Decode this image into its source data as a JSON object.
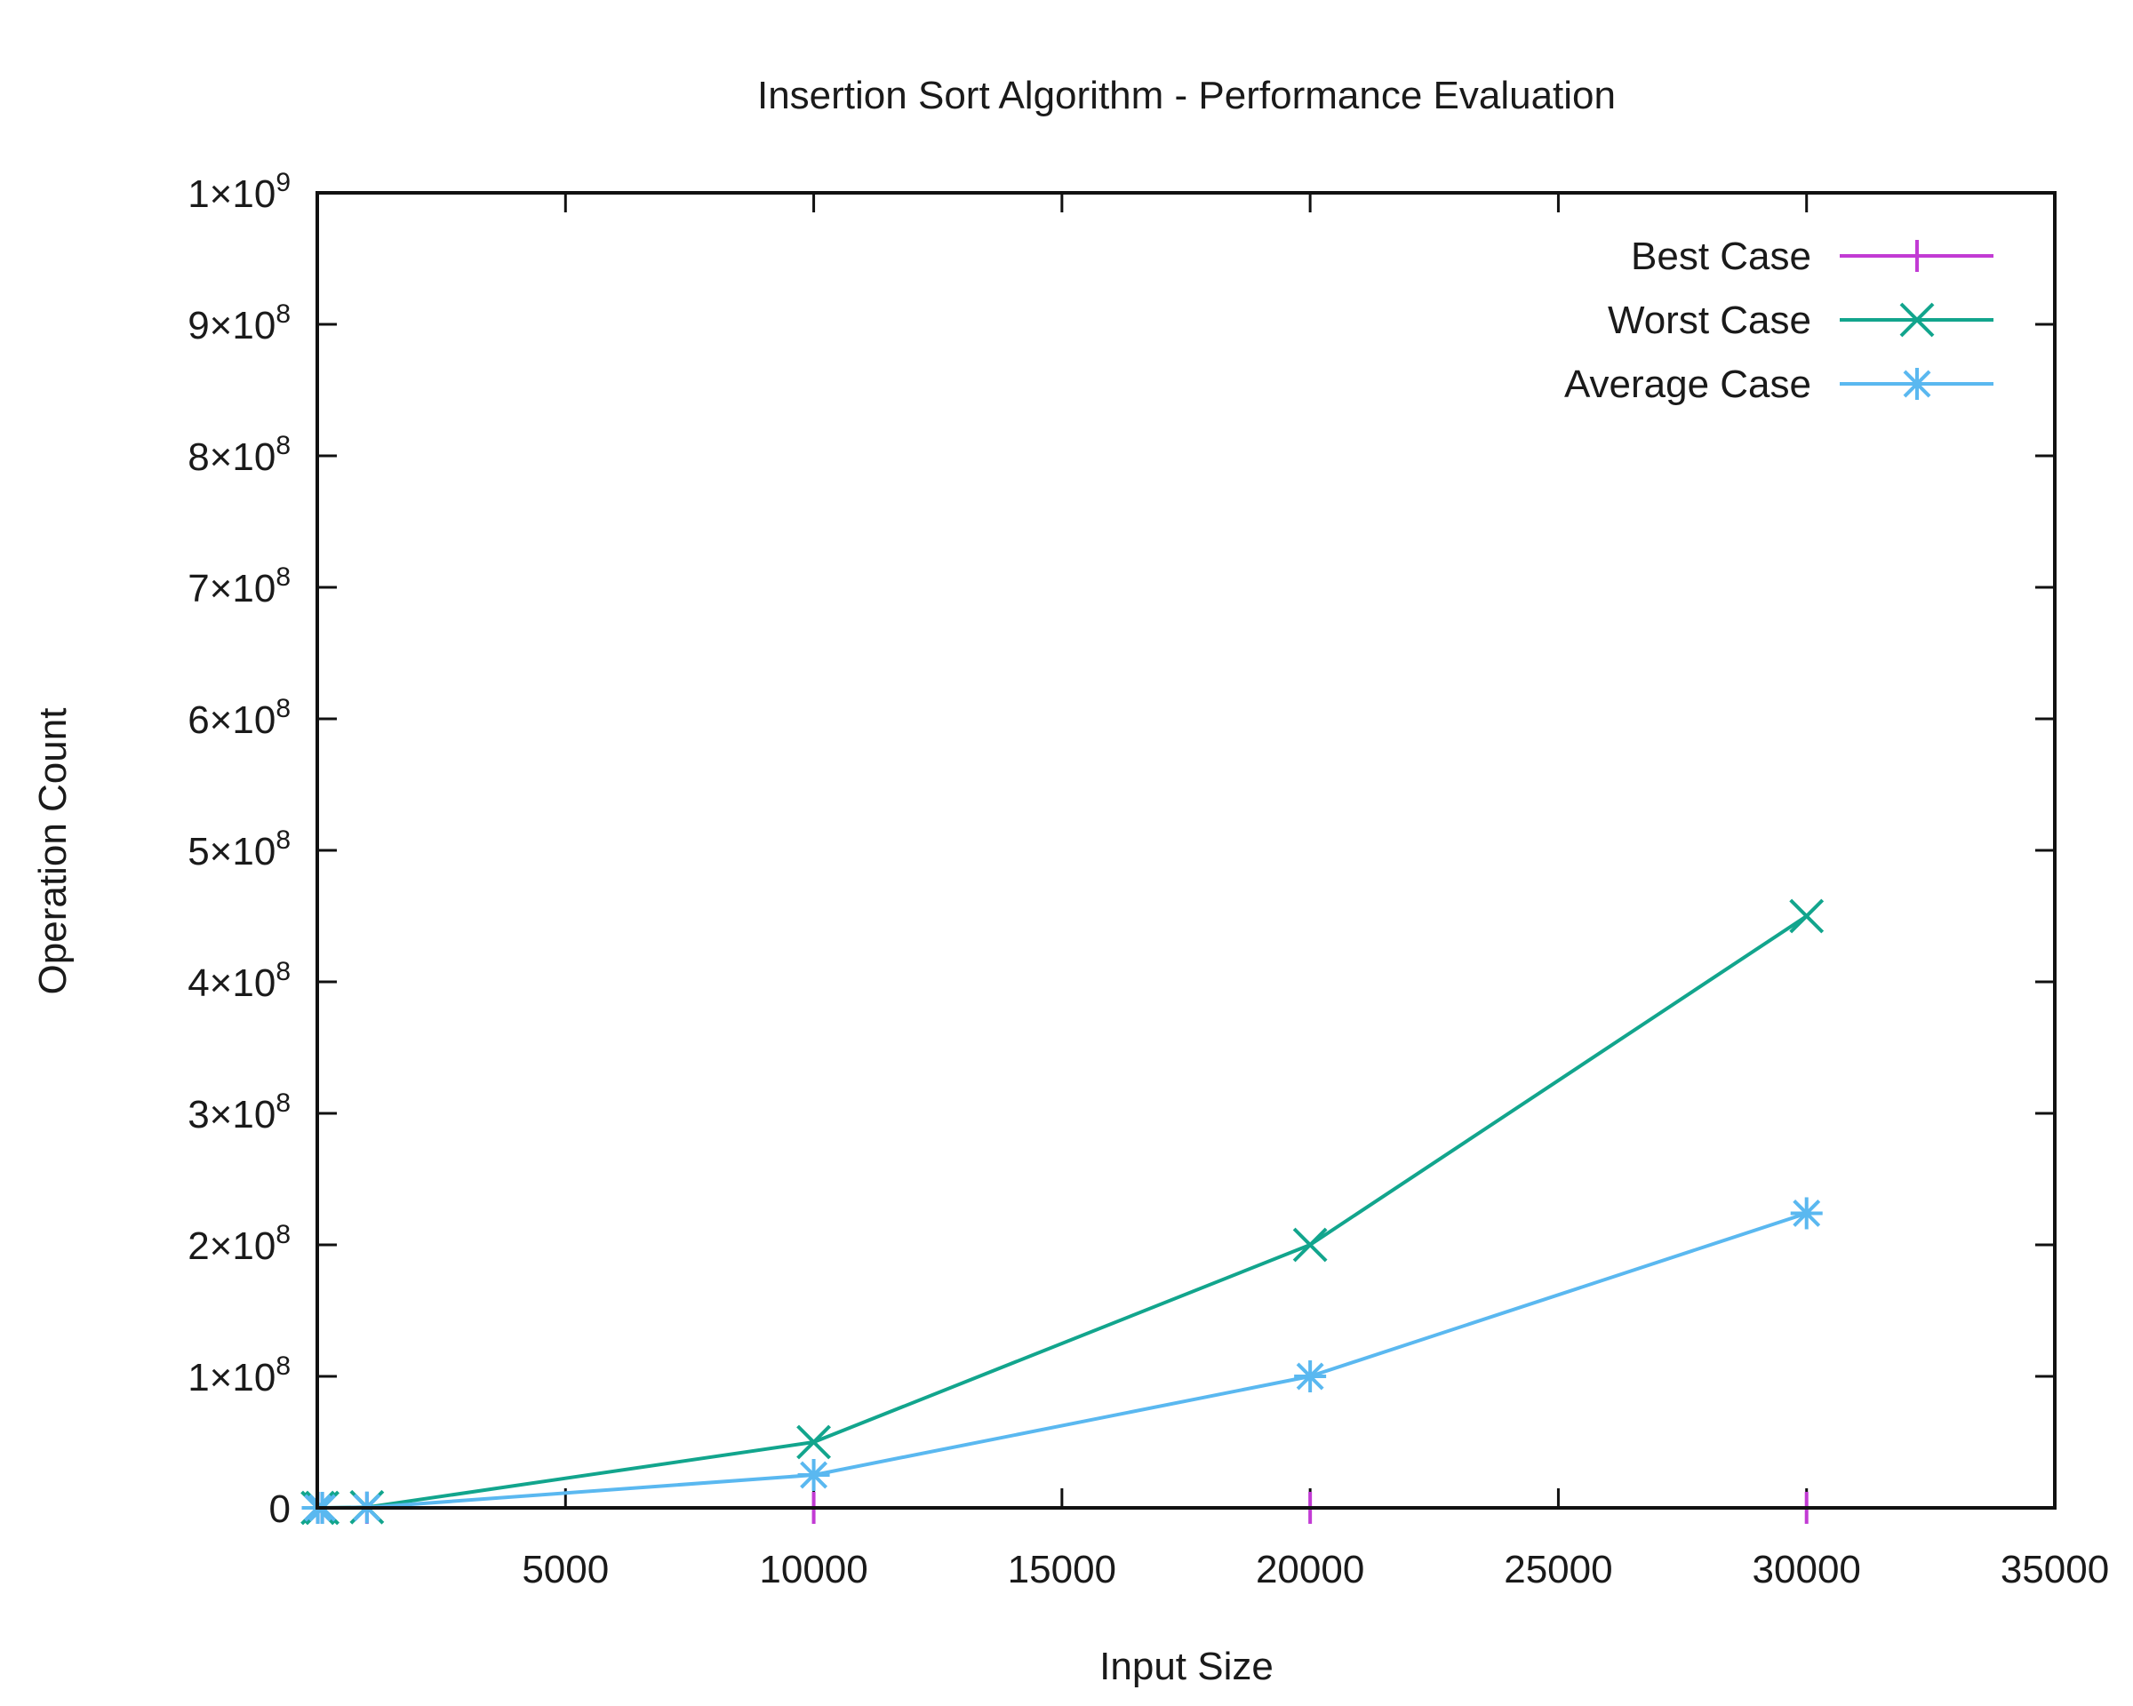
{
  "chart_data": {
    "type": "line",
    "title": "Insertion Sort Algorithm - Performance Evaluation",
    "xlabel": "Input Size",
    "ylabel": "Operation Count",
    "xlim": [
      0,
      35000
    ],
    "ylim": [
      0,
      1000000000
    ],
    "x_ticks": [
      {
        "value": 5000,
        "label": "5000"
      },
      {
        "value": 10000,
        "label": "10000"
      },
      {
        "value": 15000,
        "label": "15000"
      },
      {
        "value": 20000,
        "label": "20000"
      },
      {
        "value": 25000,
        "label": "25000"
      },
      {
        "value": 30000,
        "label": "30000"
      },
      {
        "value": 35000,
        "label": "35000"
      }
    ],
    "y_ticks": [
      {
        "value": 0,
        "mant": "0",
        "exp": ""
      },
      {
        "value": 100000000,
        "mant": "1×10",
        "exp": "8"
      },
      {
        "value": 200000000,
        "mant": "2×10",
        "exp": "8"
      },
      {
        "value": 300000000,
        "mant": "3×10",
        "exp": "8"
      },
      {
        "value": 400000000,
        "mant": "4×10",
        "exp": "8"
      },
      {
        "value": 500000000,
        "mant": "5×10",
        "exp": "8"
      },
      {
        "value": 600000000,
        "mant": "6×10",
        "exp": "8"
      },
      {
        "value": 700000000,
        "mant": "7×10",
        "exp": "8"
      },
      {
        "value": 800000000,
        "mant": "8×10",
        "exp": "8"
      },
      {
        "value": 900000000,
        "mant": "9×10",
        "exp": "8"
      },
      {
        "value": 1000000000,
        "mant": "1×10",
        "exp": "9"
      }
    ],
    "grid": false,
    "legend_position": "top-right",
    "series": [
      {
        "name": "Best Case",
        "color": "#c23bd4",
        "marker": "plus",
        "x": [
          10,
          100,
          1000,
          10000,
          20000,
          30000
        ],
        "y": [
          9,
          99,
          999,
          9999,
          19999,
          29999
        ]
      },
      {
        "name": "Worst Case",
        "color": "#12a58d",
        "marker": "cross",
        "x": [
          10,
          100,
          1000,
          10000,
          20000,
          30000
        ],
        "y": [
          45,
          4950,
          499500,
          49995000,
          199990000,
          449985000
        ]
      },
      {
        "name": "Average Case",
        "color": "#5ab8f0",
        "marker": "star",
        "x": [
          10,
          100,
          1000,
          10000,
          20000,
          30000
        ],
        "y": [
          25,
          2500,
          250000,
          25000000,
          100000000,
          224000000
        ]
      }
    ]
  }
}
